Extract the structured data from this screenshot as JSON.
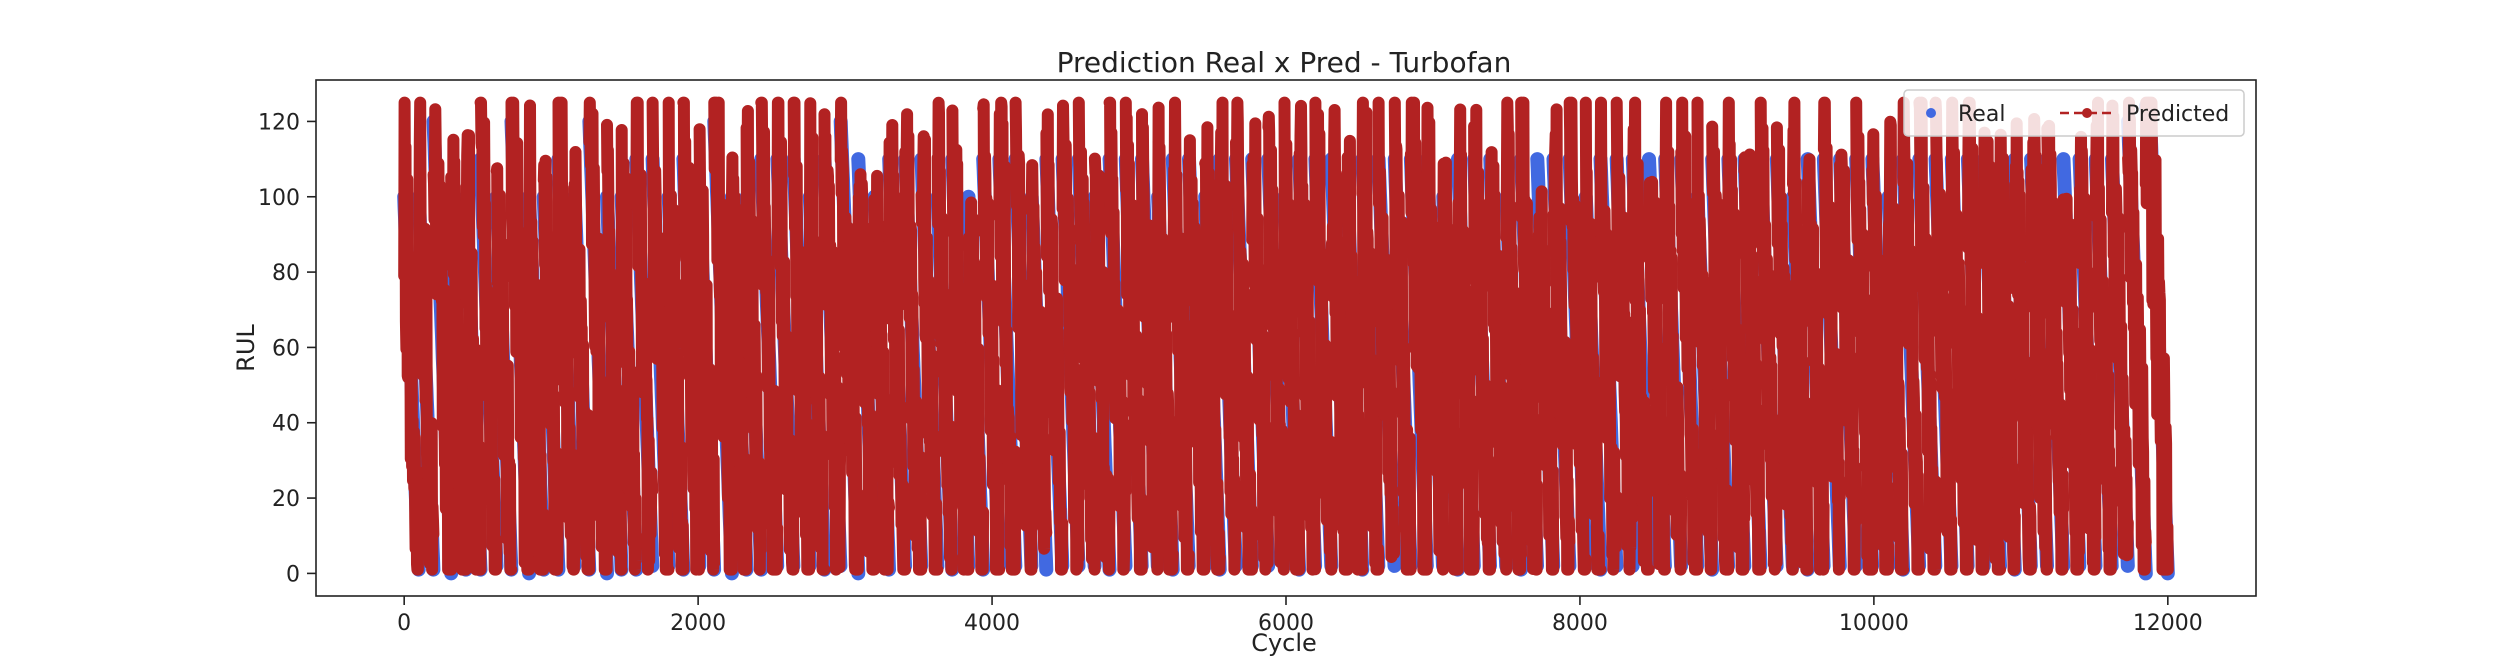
{
  "chart_data": {
    "type": "scatter",
    "title": "Prediction Real x Pred - Turbofan",
    "xlabel": "Cycle",
    "ylabel": "RUL",
    "xlim": [
      -600,
      12600
    ],
    "ylim": [
      -6,
      131
    ],
    "xticks": [
      0,
      2000,
      4000,
      6000,
      8000,
      10000,
      12000
    ],
    "yticks": [
      0,
      20,
      40,
      60,
      80,
      100,
      120
    ],
    "grid": false,
    "legend_position": "top-right",
    "total_cycles": 12000,
    "engine_starts": [
      0,
      100,
      200,
      320,
      420,
      520,
      630,
      730,
      850,
      950,
      1050,
      1160,
      1260,
      1380,
      1480,
      1580,
      1690,
      1800,
      1900,
      2010,
      2110,
      2230,
      2330,
      2430,
      2540,
      2650,
      2760,
      2860,
      2970,
      3090,
      3200,
      3300,
      3410,
      3520,
      3630,
      3730,
      3840,
      3940,
      4050,
      4160,
      4270,
      4370,
      4480,
      4590,
      4700,
      4800,
      4910,
      5020,
      5130,
      5230,
      5340,
      5450,
      5550,
      5660,
      5770,
      5880,
      5990,
      6090,
      6200,
      6310,
      6420,
      6520,
      6630,
      6740,
      6850,
      6960,
      7070,
      7170,
      7280,
      7390,
      7500,
      7600,
      7710,
      7820,
      7930,
      8040,
      8140,
      8250,
      8360,
      8470,
      8580,
      8690,
      8800,
      8900,
      9010,
      9120,
      9230,
      9340,
      9450,
      9550,
      9660,
      9770,
      9880,
      9990,
      10100,
      10200,
      10310,
      10420,
      10530,
      10640,
      10750,
      10860,
      10960,
      11070,
      11180,
      11290,
      11400,
      11510,
      11620,
      11730,
      11850
    ],
    "series": [
      {
        "name": "Real",
        "color": "#4169e1",
        "style": "scatter",
        "rul_cap": 124
      },
      {
        "name": "Predicted",
        "color": "#b22222",
        "style": "line-with-markers-dashed"
      }
    ]
  }
}
